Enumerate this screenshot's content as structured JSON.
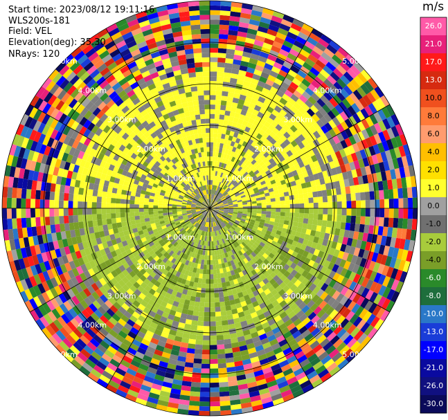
{
  "header": {
    "start_time": "Start time: 2023/08/12 19:11:16",
    "instrument": "WLS200s-181",
    "field": "Field: VEL",
    "elevation": "Elevation(deg): 35.30",
    "nrays": "NRays: 120"
  },
  "chart_data": {
    "type": "heatmap",
    "subtype": "ppi-polar",
    "colorbar": {
      "unit": "m/s",
      "ticks": [
        "26.0",
        "21.0",
        "17.0",
        "13.0",
        "10.0",
        "8.0",
        "6.0",
        "4.0",
        "2.0",
        "1.0",
        "0.0",
        "-1.0",
        "-2.0",
        "-4.0",
        "-6.0",
        "-8.0",
        "-10.0",
        "-13.0",
        "-17.0",
        "-21.0",
        "-26.0",
        "-30.0"
      ],
      "colors": [
        "#ff5aa8",
        "#e8207a",
        "#ff1a1a",
        "#d62a10",
        "#f0501e",
        "#ff7b3a",
        "#ff9c6e",
        "#ffbf00",
        "#ffe000",
        "#ffff2e",
        "#a0a0a0",
        "#707070",
        "#a8cc3c",
        "#7a9e28",
        "#2a8a2a",
        "#1e6e3c",
        "#2a78c8",
        "#1a3cd8",
        "#0000ff",
        "#0a0aa0",
        "#101080",
        "#0a0a5a"
      ]
    },
    "range_rings": [
      {
        "label": "1.00km"
      },
      {
        "label": "2.00km"
      },
      {
        "label": "3.00km"
      },
      {
        "label": "4.00km"
      },
      {
        "label": "5.00km"
      }
    ]
  }
}
